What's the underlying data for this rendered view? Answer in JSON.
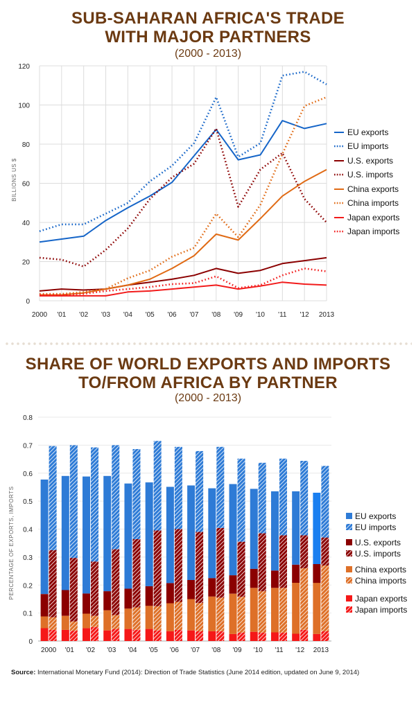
{
  "header": {
    "title_line1": "SUB-SAHARAN AFRICA'S TRADE",
    "title_line2": "WITH MAJOR PARTNERS",
    "subtitle": "(2000 - 2013)"
  },
  "header2": {
    "title_line1": "SHARE OF WORLD EXPORTS AND IMPORTS",
    "title_line2": "TO/FROM AFRICA BY PARTNER",
    "subtitle": "(2000 - 2013)"
  },
  "source": {
    "label": "Source:",
    "text": "International Monetary Fund (2014): Direction of Trade Statistics (June 2014 edition, updated on June 9, 2014)"
  },
  "colors": {
    "title": "#6b3a12",
    "eu": "#1565c8",
    "us": "#8b0000",
    "china": "#e06a14",
    "japan": "#f21b1b",
    "eu_bar": "#2e7bd6",
    "eu_bar_2013": "#1a7ff0",
    "us_bar": "#8b0000",
    "china_bar": "#de7028",
    "japan_bar": "#f51818"
  },
  "chart_data": [
    {
      "type": "line",
      "title": "SUB-SAHARAN AFRICA'S TRADE WITH MAJOR PARTNERS (2000 - 2013)",
      "xlabel": "",
      "ylabel": "BILLIONS US $",
      "ylim": [
        0,
        120
      ],
      "yticks": [
        0,
        20,
        40,
        60,
        80,
        100,
        120
      ],
      "grid": true,
      "legend": "right",
      "x": [
        "2000",
        "'01",
        "'02",
        "'03",
        "'04",
        "'05",
        "'06",
        "'07",
        "'08",
        "'09",
        "'10",
        "'11",
        "'12",
        "2013"
      ],
      "series": [
        {
          "name": "EU exports",
          "color_key": "eu",
          "style": "solid",
          "values": [
            30,
            31.5,
            33,
            41,
            47.5,
            53.5,
            60.5,
            74,
            87.5,
            72,
            74.5,
            92,
            88,
            90.5
          ]
        },
        {
          "name": "EU imports",
          "color_key": "eu",
          "style": "dotted",
          "values": [
            35.5,
            39,
            39,
            44.5,
            50,
            61,
            69,
            80.5,
            104,
            73.5,
            80.5,
            115,
            117,
            110.5
          ]
        },
        {
          "name": "U.S. exports",
          "color_key": "us",
          "style": "solid",
          "values": [
            5,
            6,
            5.5,
            6,
            8,
            9.5,
            11,
            13,
            16.5,
            14,
            15.5,
            19,
            20.5,
            22
          ]
        },
        {
          "name": "U.S. imports",
          "color_key": "us",
          "style": "dotted",
          "values": [
            22,
            21,
            17.5,
            26,
            37,
            52,
            63,
            70,
            88,
            48,
            67,
            75.5,
            52,
            40
          ]
        },
        {
          "name": "China exports",
          "color_key": "china",
          "style": "solid",
          "values": [
            3,
            3,
            4,
            6,
            8,
            11,
            16.5,
            23,
            34,
            31,
            42,
            53.5,
            61,
            67
          ]
        },
        {
          "name": "China imports",
          "color_key": "china",
          "style": "dotted",
          "values": [
            3.5,
            3.5,
            4.5,
            6,
            11.5,
            15.5,
            22.5,
            27,
            44.5,
            32.5,
            49,
            75,
            99.5,
            104
          ]
        },
        {
          "name": "Japan exports",
          "color_key": "japan",
          "style": "solid",
          "values": [
            2.5,
            2.5,
            2.5,
            2.5,
            4.5,
            5,
            6,
            7,
            8,
            6,
            7.5,
            9.5,
            8.5,
            8
          ]
        },
        {
          "name": "Japan imports",
          "color_key": "japan",
          "style": "dotted",
          "values": [
            3,
            3,
            3.5,
            5,
            6,
            7,
            8.5,
            9,
            12.5,
            6.5,
            8,
            13,
            16.5,
            15
          ]
        }
      ]
    },
    {
      "type": "bar",
      "stacked": true,
      "title": "SHARE OF WORLD EXPORTS AND IMPORTS TO/FROM AFRICA BY PARTNER (2000 - 2013)",
      "xlabel": "",
      "ylabel": "PERCENTAGE OF EXPORTS, IMPORTS",
      "ylim": [
        0,
        0.8
      ],
      "yticks": [
        "0",
        "0.1",
        "0.2",
        "0.3",
        "0.4",
        "0.5",
        "0.6",
        "0.7",
        "0.8"
      ],
      "grid": true,
      "legend": "right",
      "categories": [
        "2000",
        "'01",
        "'02",
        "'03",
        "'04",
        "'05",
        "'06",
        "'07",
        "'08",
        "'09",
        "'10",
        "'11",
        "'12",
        "2013"
      ],
      "groups": [
        {
          "name": "exports",
          "pattern": "solid",
          "series": [
            {
              "name": "Japan exports",
              "color_key": "japan_bar",
              "values": [
                0.046,
                0.04,
                0.046,
                0.038,
                0.043,
                0.043,
                0.035,
                0.038,
                0.035,
                0.025,
                0.033,
                0.031,
                0.026,
                0.025
              ]
            },
            {
              "name": "China exports",
              "color_key": "china_bar",
              "values": [
                0.042,
                0.05,
                0.052,
                0.072,
                0.073,
                0.083,
                0.1,
                0.112,
                0.124,
                0.144,
                0.157,
                0.159,
                0.182,
                0.183
              ]
            },
            {
              "name": "U.S. exports",
              "color_key": "us_bar",
              "values": [
                0.08,
                0.092,
                0.072,
                0.068,
                0.071,
                0.07,
                0.072,
                0.068,
                0.066,
                0.066,
                0.068,
                0.062,
                0.065,
                0.067
              ]
            },
            {
              "name": "EU exports",
              "color_key": "eu_bar",
              "values": [
                0.409,
                0.408,
                0.418,
                0.412,
                0.376,
                0.371,
                0.344,
                0.338,
                0.321,
                0.326,
                0.286,
                0.283,
                0.262,
                0.255
              ]
            }
          ]
        },
        {
          "name": "imports",
          "pattern": "hatched",
          "series": [
            {
              "name": "Japan imports",
              "color_key": "japan_bar",
              "values": [
                0.04,
                0.037,
                0.05,
                0.043,
                0.04,
                0.038,
                0.04,
                0.035,
                0.035,
                0.03,
                0.03,
                0.03,
                0.04,
                0.035
              ]
            },
            {
              "name": "China imports",
              "color_key": "china_bar",
              "values": [
                0.045,
                0.033,
                0.04,
                0.05,
                0.08,
                0.086,
                0.1,
                0.101,
                0.12,
                0.128,
                0.148,
                0.16,
                0.22,
                0.235
              ]
            },
            {
              "name": "U.S. imports",
              "color_key": "us_bar",
              "values": [
                0.24,
                0.227,
                0.194,
                0.235,
                0.244,
                0.271,
                0.26,
                0.254,
                0.249,
                0.197,
                0.207,
                0.188,
                0.118,
                0.1
              ]
            },
            {
              "name": "EU imports",
              "color_key": "eu_bar",
              "values": [
                0.372,
                0.403,
                0.408,
                0.372,
                0.322,
                0.32,
                0.294,
                0.289,
                0.29,
                0.297,
                0.252,
                0.274,
                0.266,
                0.256
              ]
            }
          ]
        }
      ]
    }
  ]
}
